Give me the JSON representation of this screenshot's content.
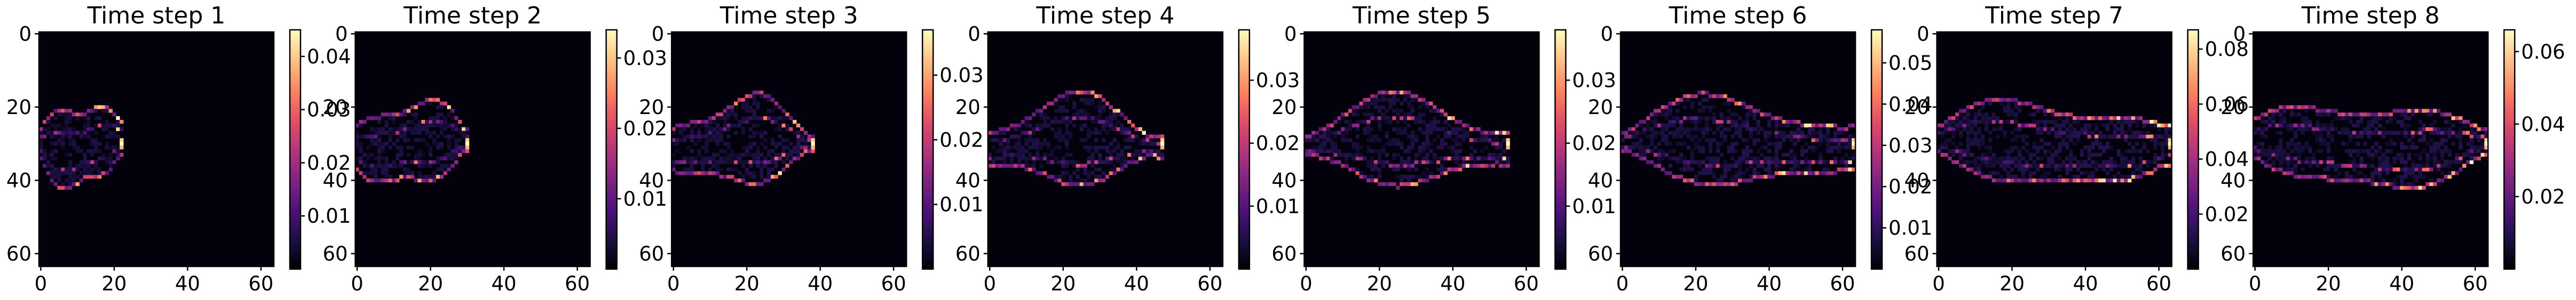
{
  "chart_data": {
    "type": "heatmap",
    "grid_size": 64,
    "colormap": "magma",
    "x_ticks": [
      "0",
      "20",
      "40",
      "60"
    ],
    "y_ticks": [
      "0",
      "20",
      "40",
      "60"
    ],
    "x_tick_values": [
      0,
      20,
      40,
      60
    ],
    "y_tick_values": [
      0,
      20,
      40,
      60
    ],
    "panels": [
      {
        "title": "Time step 1",
        "front": 22,
        "vmin": 0.0,
        "vmax": 0.045,
        "colorbar_ticks": [
          {
            "value": 0.01,
            "label": "0.01"
          },
          {
            "value": 0.02,
            "label": "0.02"
          },
          {
            "value": 0.03,
            "label": "0.03"
          },
          {
            "value": 0.04,
            "label": "0.04"
          }
        ]
      },
      {
        "title": "Time step 2",
        "front": 30,
        "vmin": 0.0,
        "vmax": 0.034,
        "colorbar_ticks": [
          {
            "value": 0.01,
            "label": "0.01"
          },
          {
            "value": 0.02,
            "label": "0.02"
          },
          {
            "value": 0.03,
            "label": "0.03"
          }
        ]
      },
      {
        "title": "Time step 3",
        "front": 38,
        "vmin": 0.0,
        "vmax": 0.037,
        "colorbar_ticks": [
          {
            "value": 0.01,
            "label": "0.01"
          },
          {
            "value": 0.02,
            "label": "0.02"
          },
          {
            "value": 0.03,
            "label": "0.03"
          }
        ]
      },
      {
        "title": "Time step 4",
        "front": 47,
        "vmin": 0.0,
        "vmax": 0.038,
        "colorbar_ticks": [
          {
            "value": 0.01,
            "label": "0.01"
          },
          {
            "value": 0.02,
            "label": "0.02"
          },
          {
            "value": 0.03,
            "label": "0.03"
          }
        ]
      },
      {
        "title": "Time step 5",
        "front": 55,
        "vmin": 0.0,
        "vmax": 0.038,
        "colorbar_ticks": [
          {
            "value": 0.01,
            "label": "0.01"
          },
          {
            "value": 0.02,
            "label": "0.02"
          },
          {
            "value": 0.03,
            "label": "0.03"
          }
        ]
      },
      {
        "title": "Time step 6",
        "front": 63,
        "vmin": 0.0,
        "vmax": 0.058,
        "colorbar_ticks": [
          {
            "value": 0.01,
            "label": "0.01"
          },
          {
            "value": 0.02,
            "label": "0.02"
          },
          {
            "value": 0.03,
            "label": "0.03"
          },
          {
            "value": 0.04,
            "label": "0.04"
          },
          {
            "value": 0.05,
            "label": "0.05"
          }
        ]
      },
      {
        "title": "Time step 7",
        "front": 63,
        "vmin": 0.0,
        "vmax": 0.087,
        "colorbar_ticks": [
          {
            "value": 0.02,
            "label": "0.02"
          },
          {
            "value": 0.04,
            "label": "0.04"
          },
          {
            "value": 0.06,
            "label": "0.06"
          },
          {
            "value": 0.08,
            "label": "0.08"
          }
        ]
      },
      {
        "title": "Time step 8",
        "front": 63,
        "vmin": 0.0,
        "vmax": 0.066,
        "colorbar_ticks": [
          {
            "value": 0.02,
            "label": "0.02"
          },
          {
            "value": 0.04,
            "label": "0.04"
          },
          {
            "value": 0.06,
            "label": "0.06"
          }
        ]
      }
    ]
  }
}
